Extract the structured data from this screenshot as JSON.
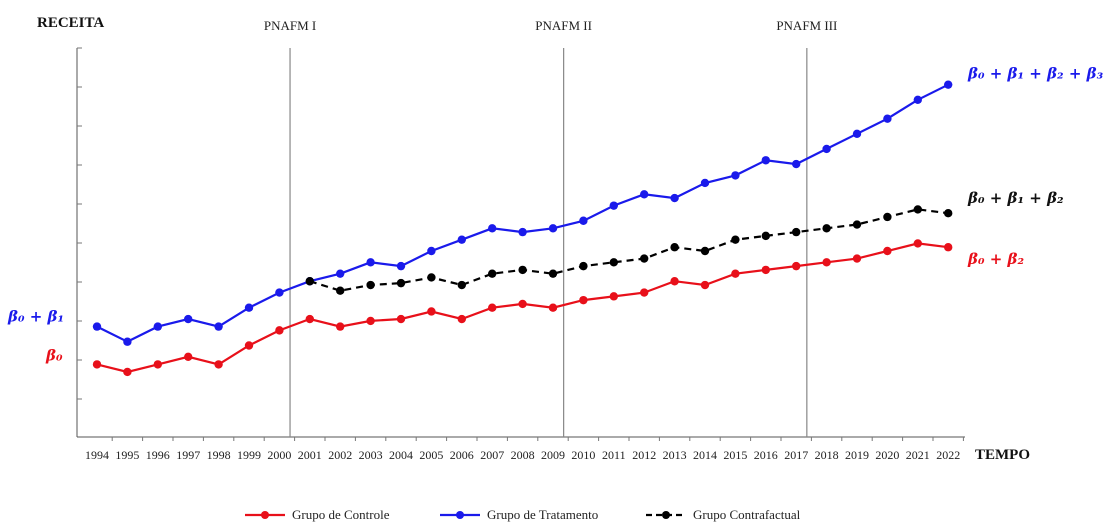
{
  "chart_data": {
    "type": "line",
    "ylabel": "RECEITA",
    "xlabel": "TEMPO",
    "x": [
      "1994",
      "1995",
      "1996",
      "1997",
      "1998",
      "1999",
      "2000",
      "2001",
      "2002",
      "2003",
      "2004",
      "2005",
      "2006",
      "2007",
      "2008",
      "2009",
      "2010",
      "2011",
      "2012",
      "2013",
      "2014",
      "2015",
      "2016",
      "2017",
      "2018",
      "2019",
      "2020",
      "2021",
      "2022"
    ],
    "ylim": [
      0,
      100
    ],
    "grid": false,
    "legend": "bottom-center",
    "series": [
      {
        "name": "Grupo de Controle",
        "color": "#e8101a",
        "dashed": false,
        "end_label": "β₀ + β₂",
        "start_label": "β₀",
        "values": [
          20,
          18,
          20,
          22,
          20,
          25,
          29,
          32,
          30,
          31.5,
          32,
          34,
          32,
          35,
          36,
          35,
          37,
          38,
          39,
          42,
          41,
          44,
          45,
          46,
          47,
          48,
          50,
          52,
          51
        ]
      },
      {
        "name": "Grupo de Tratamento",
        "color": "#1a1aeb",
        "dashed": false,
        "end_label": "β₀ + β₁ + β₂ + β₃",
        "start_label": "β₀ + β₁",
        "values": [
          30,
          26,
          30,
          32,
          30,
          35,
          39,
          42,
          44,
          47,
          46,
          50,
          53,
          56,
          55,
          56,
          58,
          62,
          65,
          64,
          68,
          70,
          74,
          73,
          77,
          81,
          85,
          90,
          94
        ]
      },
      {
        "name": "Grupo Contrafactual",
        "color": "#000000",
        "dashed": true,
        "end_label": "β₀ + β₁ + β₂",
        "start_index": 7,
        "values": [
          null,
          null,
          null,
          null,
          null,
          null,
          null,
          42,
          39.5,
          41,
          41.5,
          43,
          41,
          44,
          45,
          44,
          46,
          47,
          48,
          51,
          50,
          53,
          54,
          55,
          56,
          57,
          59,
          61,
          60
        ]
      }
    ],
    "vlines": [
      {
        "after": "2000",
        "label": "PNAFM I"
      },
      {
        "after": "2009",
        "label": "PNAFM II"
      },
      {
        "after": "2017",
        "label": "PNAFM III"
      }
    ]
  }
}
